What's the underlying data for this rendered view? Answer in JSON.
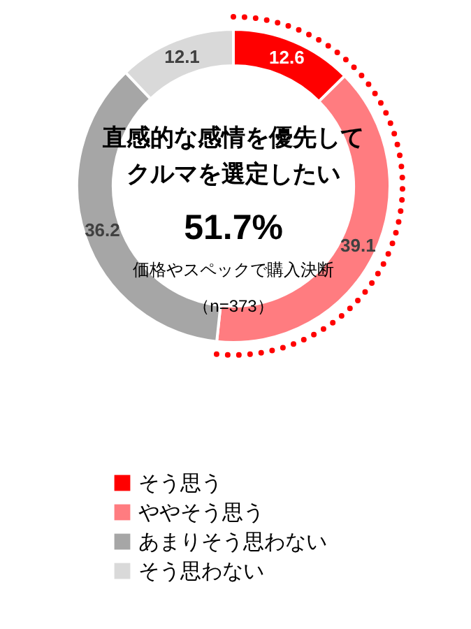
{
  "chart_data": {
    "type": "donut",
    "categories": [
      "そう思う",
      "ややそう思う",
      "あまりそう思わない",
      "そう思わない"
    ],
    "values": [
      12.6,
      39.1,
      36.2,
      12.1
    ],
    "colors": [
      "#ff0000",
      "#ff7c80",
      "#a6a6a6",
      "#d9d9d9"
    ],
    "data_labels": true,
    "legend": "bottom left",
    "annotations": [
      "直感的な感情を優先して",
      "クルマを選定したい",
      "51.7%",
      "価格やスペックで購入決断",
      "（n=373）"
    ]
  }
}
